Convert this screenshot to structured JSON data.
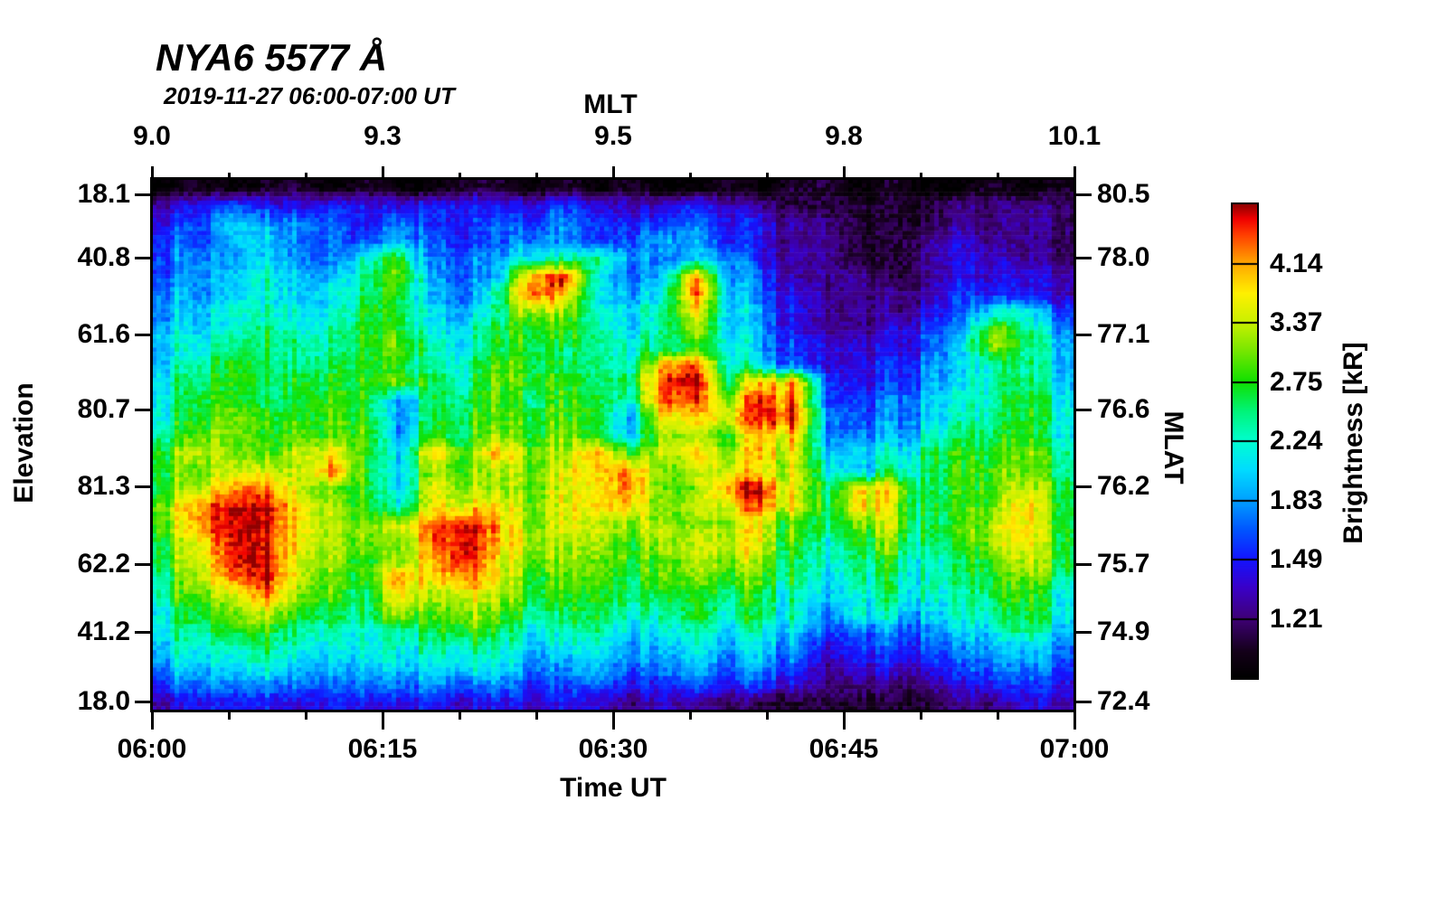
{
  "title": "NYA6 5577 Å",
  "subtitle": "2019-11-27 06:00-07:00 UT",
  "axes": {
    "top": {
      "label": "MLT",
      "ticks": [
        "9.0",
        "9.3",
        "9.5",
        "9.8",
        "10.1"
      ]
    },
    "bottom": {
      "label": "Time UT",
      "ticks": [
        "06:00",
        "06:15",
        "06:30",
        "06:45",
        "07:00"
      ]
    },
    "left": {
      "label": "Elevation",
      "ticks": [
        "18.1",
        "40.8",
        "61.6",
        "80.7",
        "81.3",
        "62.2",
        "41.2",
        "18.0"
      ]
    },
    "right": {
      "label": "MLAT",
      "ticks": [
        "80.5",
        "78.0",
        "77.1",
        "76.6",
        "76.2",
        "75.7",
        "74.9",
        "72.4"
      ]
    }
  },
  "colorbar": {
    "label": "Brightness [kR]",
    "ticks": [
      "4.14",
      "3.37",
      "2.75",
      "2.24",
      "1.83",
      "1.49",
      "1.21"
    ]
  },
  "chart_data": {
    "type": "heatmap",
    "title": "NYA6 5577 Å",
    "subtitle": "2019-11-27 06:00-07:00 UT",
    "x_axis": {
      "label": "Time UT",
      "ticks": [
        "06:00",
        "06:15",
        "06:30",
        "06:45",
        "07:00"
      ],
      "minor_tick_minutes": 5
    },
    "x2_axis": {
      "label": "MLT",
      "ticks": [
        "9.0",
        "9.3",
        "9.5",
        "9.8",
        "10.1"
      ]
    },
    "y_axis": {
      "label": "Elevation",
      "ticks": [
        "18.1",
        "40.8",
        "61.6",
        "80.7",
        "81.3",
        "62.2",
        "41.2",
        "18.0"
      ]
    },
    "y2_axis": {
      "label": "MLAT",
      "ticks": [
        "80.5",
        "78.0",
        "77.1",
        "76.6",
        "76.2",
        "75.7",
        "74.9",
        "72.4"
      ]
    },
    "colorbar": {
      "label": "Brightness [kR]",
      "ticks": [
        4.14,
        3.37,
        2.75,
        2.24,
        1.83,
        1.49,
        1.21
      ],
      "scale": "log",
      "range_kR": [
        0.99,
        5.08
      ]
    },
    "colormap": [
      [
        0.0,
        "#000000"
      ],
      [
        0.055,
        "#140019"
      ],
      [
        0.125,
        "#3f0077"
      ],
      [
        0.19,
        "#3a00c8"
      ],
      [
        0.25,
        "#1414ff"
      ],
      [
        0.3125,
        "#0055ff"
      ],
      [
        0.375,
        "#00a0ff"
      ],
      [
        0.44,
        "#00dcff"
      ],
      [
        0.5,
        "#00ffd0"
      ],
      [
        0.5625,
        "#00f47a"
      ],
      [
        0.625,
        "#10e000"
      ],
      [
        0.6875,
        "#72e600"
      ],
      [
        0.75,
        "#c8f000"
      ],
      [
        0.8125,
        "#fff000"
      ],
      [
        0.875,
        "#ffa800"
      ],
      [
        0.9375,
        "#ff3c00"
      ],
      [
        0.97,
        "#f00000"
      ],
      [
        1.0,
        "#900000"
      ]
    ],
    "grid": {
      "cols": 28,
      "rows": 30,
      "encoding": "hex digit 0-f = normalized log brightness (0=~0.99 kR black, f=~5.08 kR dark red); cols span 06:00-07:00 UT, rows span elevation scan top-to-bottom",
      "rows_hex": [
        "0101101001101010010110100101",
        "3454344344334333432111112222",
        "4576554544445444543221112222",
        "5577555654455456643221123222",
        "5667558955577865663221123322",
        "5678669a655de756d64222123333",
        "66786799657ec767e74322224433",
        "678877a9767ba778c75322234775",
        "778978a977899878b75322345a86",
        "789988aa87898888985433346b87",
        "79a989a98899888de86433456887",
        "89a999aa9899989ef9cd43456887",
        "8aa99aa59998998eebed44567898",
        "8aba9aa59999996cccee54567898",
        "9bbaaab5a9a9a97bbacc55678998",
        "acbabca6dacaadabcbcb667899a9",
        "abccbea6baaabceabcbb76889aa9",
        "aceebaa6cbaabceaaeeb8cc89aba",
        "beffcba7ccbabcdabcdb8cb89aca",
        "beffcbbbefcabbbbabb98ab89bca",
        "adffcbbaefcbababbcb979a89bca",
        "acffbbaadfbaaaaabba878978aba",
        "9cefbaadceb99a9aaa98688789a9",
        "9bceaa9cbca99999998767877998",
        "8abc999bab988988988757767898",
        "89aa88889a877877877645556787",
        "7889778788766766766534445666",
        "6778667677655655655423334555",
        "5666556565544544544322223444",
        "3444344343333323221111112233"
      ]
    }
  }
}
